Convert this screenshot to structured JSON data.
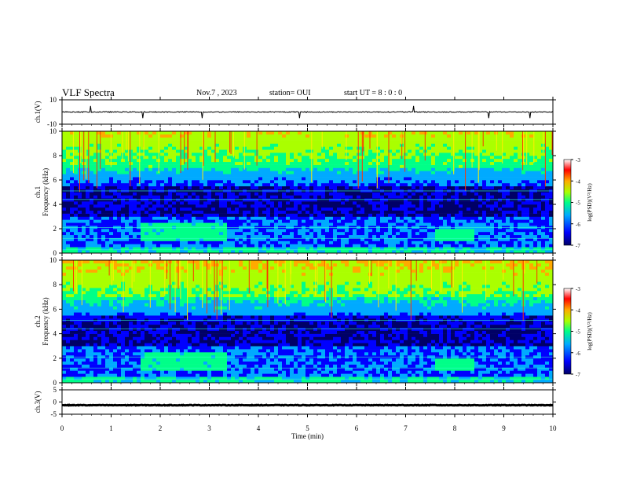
{
  "header": {
    "title": "VLF Spectra",
    "date": "Nov.7 , 2023",
    "station": "station= OUI",
    "start": "start UT = 8 : 0 : 0"
  },
  "chart_data": [
    {
      "type": "line",
      "panel": "ch1_waveform",
      "ylabel": "ch.1(V)",
      "ylim": [
        -10,
        10
      ],
      "yticks": [
        "10",
        "-10"
      ],
      "xlim": [
        0,
        10
      ],
      "baseline": 0,
      "color": "#000000"
    },
    {
      "type": "heatmap",
      "panel": "ch1_spectrogram",
      "ylabel": "ch.1\nFrequency (kHz)",
      "ylim": [
        0,
        10
      ],
      "yticks": [
        "0",
        "2",
        "4",
        "6",
        "8",
        "10"
      ],
      "xlim": [
        0,
        10
      ],
      "colorbar": {
        "label": "log(PSD)(V²/Hz)",
        "range": [
          -7,
          -3
        ],
        "ticks": [
          "-3",
          "-4",
          "-5",
          "-6",
          "-7"
        ],
        "colormap": [
          "#000066",
          "#0000ff",
          "#00aaff",
          "#00ff88",
          "#aaff00",
          "#ffaa00",
          "#ff0000",
          "#ffffff"
        ]
      }
    },
    {
      "type": "heatmap",
      "panel": "ch2_spectrogram",
      "ylabel": "ch.2\nFrequency (kHz)",
      "ylim": [
        0,
        10
      ],
      "yticks": [
        "0",
        "2",
        "4",
        "6",
        "8",
        "10"
      ],
      "xlim": [
        0,
        10
      ],
      "colorbar": {
        "label": "log(PSD)(V²/Hz)",
        "range": [
          -7,
          -3
        ],
        "ticks": [
          "-3",
          "-4",
          "-5",
          "-6",
          "-7"
        ],
        "colormap": [
          "#000066",
          "#0000ff",
          "#00aaff",
          "#00ff88",
          "#aaff00",
          "#ffaa00",
          "#ff0000",
          "#ffffff"
        ]
      }
    },
    {
      "type": "line",
      "panel": "ch3_waveform",
      "ylabel": "ch.3(V)",
      "ylim": [
        -5,
        5
      ],
      "yticks": [
        "5",
        "0",
        "-5"
      ],
      "xlim": [
        0,
        10
      ],
      "baseline": -1.3,
      "color": "#000000"
    }
  ],
  "xaxis": {
    "label": "Time (min)",
    "ticks": [
      "0",
      "1",
      "2",
      "3",
      "4",
      "5",
      "6",
      "7",
      "8",
      "9",
      "10"
    ]
  }
}
